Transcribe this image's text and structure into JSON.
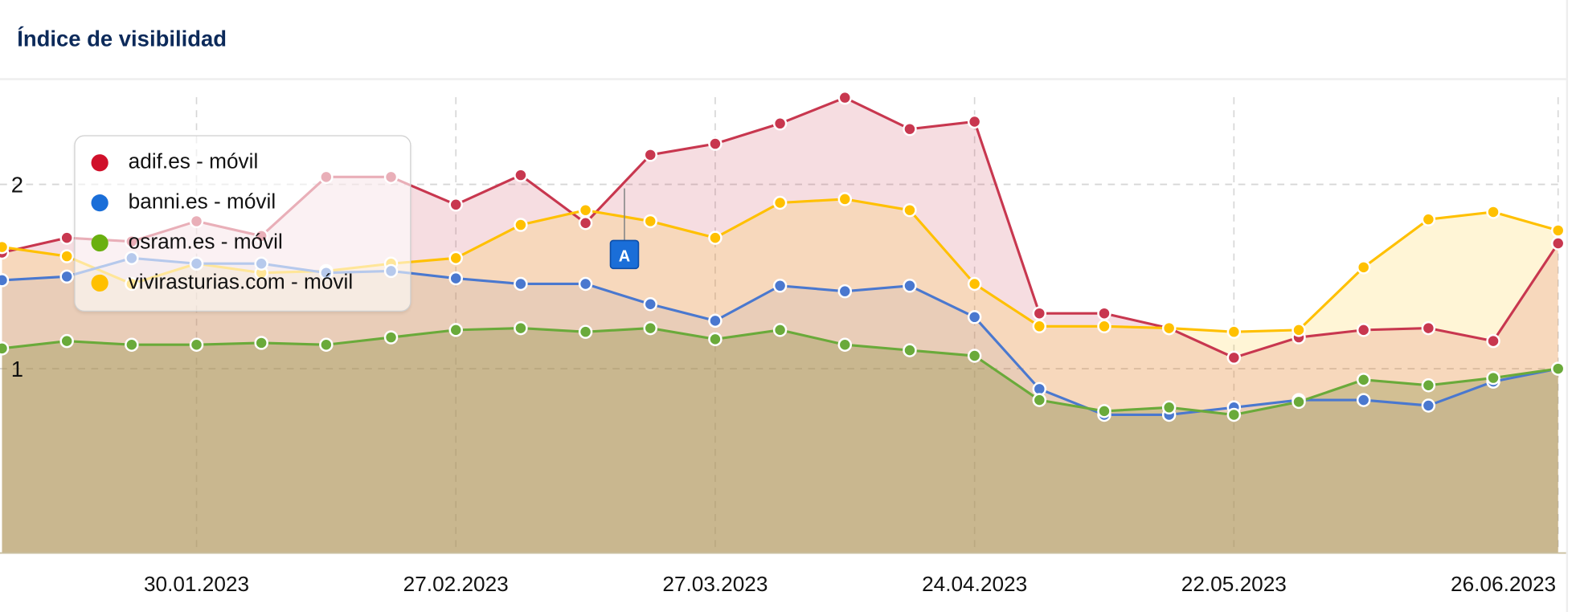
{
  "header": {
    "title": "Índice de visibilidad"
  },
  "chart_data": {
    "type": "area",
    "title": "Índice de visibilidad",
    "xlabel": "",
    "ylabel": "",
    "ylim": [
      0,
      2.5
    ],
    "yticks": [
      {
        "value": 2,
        "label": "2"
      },
      {
        "value": 1,
        "label": "1"
      }
    ],
    "xticks": [
      {
        "index": 3,
        "label": "30.01.2023"
      },
      {
        "index": 7,
        "label": "27.02.2023"
      },
      {
        "index": 11,
        "label": "27.03.2023"
      },
      {
        "index": 15,
        "label": "24.04.2023"
      },
      {
        "index": 19,
        "label": "22.05.2023"
      },
      {
        "index": 24,
        "label": "26.06.2023"
      }
    ],
    "grid": true,
    "legend_position": "top-left",
    "series": [
      {
        "name": "adif.es - móvil",
        "color": "#c8374f",
        "fill": "rgba(200,55,80,0.17)",
        "values": [
          1.63,
          1.71,
          1.69,
          1.8,
          1.72,
          2.04,
          2.04,
          1.89,
          2.05,
          1.79,
          2.16,
          2.22,
          2.33,
          2.47,
          2.3,
          2.34,
          1.3,
          1.3,
          1.22,
          1.06,
          1.17,
          1.21,
          1.22,
          1.15,
          1.68
        ]
      },
      {
        "name": "banni.es - móvil",
        "color": "#4a78cf",
        "fill": "rgba(120,110,160,0.10)",
        "values": [
          1.48,
          1.5,
          1.6,
          1.57,
          1.57,
          1.52,
          1.53,
          1.49,
          1.46,
          1.46,
          1.35,
          1.26,
          1.45,
          1.42,
          1.45,
          1.28,
          0.89,
          0.75,
          0.75,
          0.79,
          0.83,
          0.83,
          0.8,
          0.93,
          1.0
        ]
      },
      {
        "name": "osram.es - móvil",
        "color": "#6aaa3a",
        "fill": "rgba(150,150,80,0.38)",
        "values": [
          1.11,
          1.15,
          1.13,
          1.13,
          1.14,
          1.13,
          1.17,
          1.21,
          1.22,
          1.2,
          1.22,
          1.16,
          1.21,
          1.13,
          1.1,
          1.07,
          0.83,
          0.77,
          0.79,
          0.75,
          0.82,
          0.94,
          0.91,
          0.95,
          1.0
        ]
      },
      {
        "name": "vivirasturias.com - móvil",
        "color": "#ffc000",
        "fill": "rgba(255,192,0,0.16)",
        "values": [
          1.66,
          1.61,
          1.46,
          1.57,
          1.52,
          1.53,
          1.57,
          1.6,
          1.78,
          1.86,
          1.8,
          1.71,
          1.9,
          1.92,
          1.86,
          1.46,
          1.23,
          1.23,
          1.22,
          1.2,
          1.21,
          1.55,
          1.81,
          1.85,
          1.75
        ]
      }
    ],
    "annotations": [
      {
        "index": 9.6,
        "label": "A",
        "color": "#1a6ed8"
      }
    ]
  }
}
